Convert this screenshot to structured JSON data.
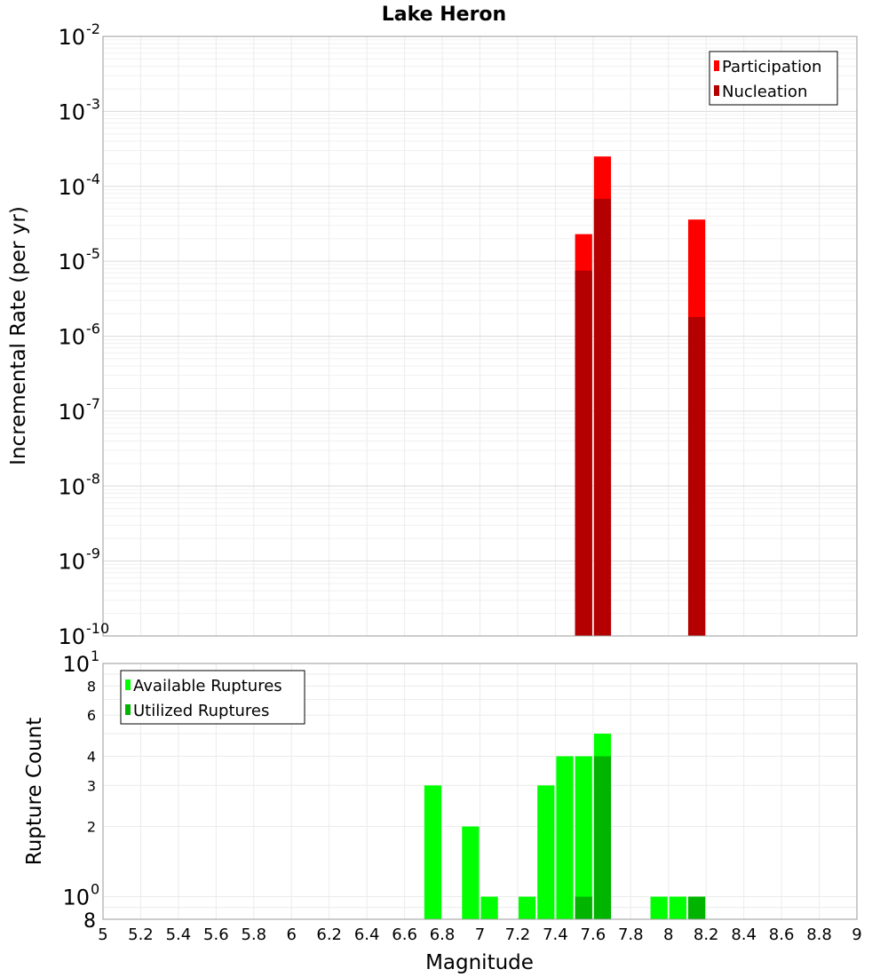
{
  "chart_data": [
    {
      "type": "bar",
      "title": "Lake Heron",
      "xlabel": "",
      "ylabel": "Incremental Rate (per yr)",
      "yscale": "log",
      "ylim": [
        1e-10,
        0.01
      ],
      "xlim": [
        5,
        9
      ],
      "bin_width": 0.1,
      "y_tick_mantissas": [
        "10",
        "10",
        "10",
        "10",
        "10",
        "10",
        "10",
        "10",
        "10"
      ],
      "y_tick_exponents": [
        "-10",
        "-9",
        "-8",
        "-7",
        "-6",
        "-5",
        "-4",
        "-3",
        "-2"
      ],
      "legend_position": "top-right",
      "grid": true,
      "series": [
        {
          "name": "Participation",
          "color": "#ff0000",
          "x": [
            7.55,
            7.65,
            8.15
          ],
          "values": [
            2.3e-05,
            0.00025,
            3.6e-05
          ]
        },
        {
          "name": "Nucleation",
          "color": "#b40000",
          "x": [
            7.55,
            7.65,
            8.15
          ],
          "values": [
            7.5e-06,
            6.8e-05,
            1.8e-06
          ]
        }
      ]
    },
    {
      "type": "bar",
      "title": "",
      "xlabel": "Magnitude",
      "ylabel": "Rupture Count",
      "yscale": "log",
      "ylim": [
        0.8,
        10
      ],
      "xlim": [
        5,
        9
      ],
      "bin_width": 0.1,
      "x_ticks": [
        "5",
        "5.2",
        "5.4",
        "5.6",
        "5.8",
        "6",
        "6.2",
        "6.4",
        "6.6",
        "6.8",
        "7",
        "7.2",
        "7.4",
        "7.6",
        "7.8",
        "8",
        "8.2",
        "8.4",
        "8.6",
        "8.8",
        "9"
      ],
      "y_minor_labels": [
        "8",
        "2",
        "3",
        "4",
        "6",
        "8"
      ],
      "y_major_mantissas": [
        "10",
        "10"
      ],
      "y_major_exponents": [
        "0",
        "1"
      ],
      "legend_position": "top-left",
      "grid": true,
      "series": [
        {
          "name": "Available Ruptures",
          "color": "#00ff00",
          "x": [
            6.75,
            6.95,
            7.05,
            7.25,
            7.35,
            7.45,
            7.55,
            7.65,
            7.95,
            8.05,
            8.15
          ],
          "values": [
            3,
            2,
            1,
            1,
            3,
            4,
            4,
            5,
            1,
            1,
            1
          ]
        },
        {
          "name": "Utilized Ruptures",
          "color": "#00b400",
          "x": [
            7.55,
            7.65,
            8.15
          ],
          "values": [
            1,
            4,
            1
          ]
        }
      ]
    }
  ]
}
